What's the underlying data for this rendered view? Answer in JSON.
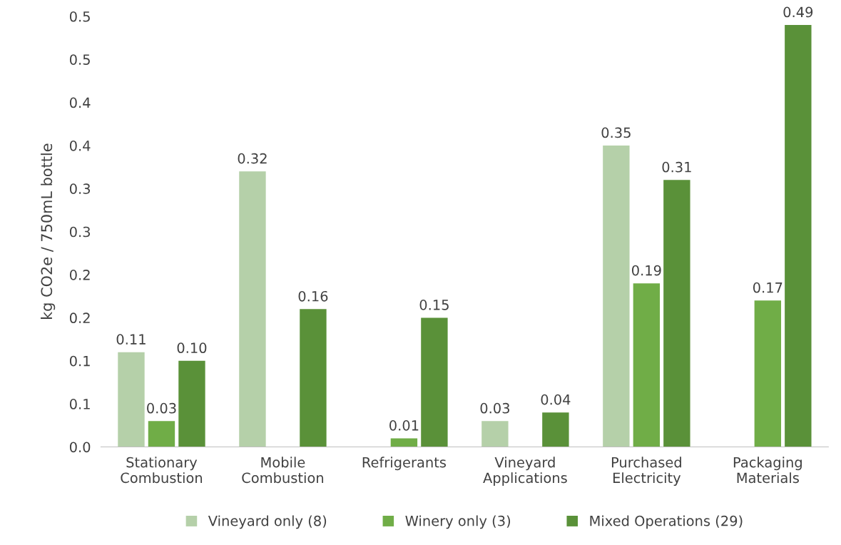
{
  "chart_data": {
    "type": "bar",
    "ylabel": "kg CO2e / 750mL bottle",
    "categories": [
      "Stationary\nCombustion",
      "Mobile\nCombustion",
      "Refrigerants",
      "Vineyard\nApplications",
      "Purchased\nElectricity",
      "Packaging\nMaterials"
    ],
    "series": [
      {
        "name": "Vineyard only (8)",
        "color": "#b5d0a9",
        "values": [
          0.11,
          0.32,
          null,
          0.03,
          0.35,
          null
        ],
        "value_labels": [
          "0.11",
          "0.32",
          null,
          "0.03",
          "0.35",
          null
        ]
      },
      {
        "name": "Winery only (3)",
        "color": "#70ad47",
        "values": [
          0.03,
          null,
          0.01,
          null,
          0.19,
          0.17
        ],
        "value_labels": [
          "0.03",
          null,
          "0.01",
          null,
          "0.19",
          "0.17"
        ]
      },
      {
        "name": "Mixed Operations (29)",
        "color": "#5a9139",
        "values": [
          0.1,
          0.16,
          0.15,
          0.04,
          0.31,
          0.49
        ],
        "value_labels": [
          "0.10",
          "0.16",
          "0.15",
          "0.04",
          "0.31",
          "0.49"
        ]
      }
    ],
    "ylim": [
      0,
      0.5
    ],
    "yticks": [
      {
        "value": 0,
        "label": "0.0"
      },
      {
        "value": 0.05,
        "label": "0.1"
      },
      {
        "value": 0.1,
        "label": "0.1"
      },
      {
        "value": 0.15,
        "label": "0.2"
      },
      {
        "value": 0.2,
        "label": "0.2"
      },
      {
        "value": 0.25,
        "label": "0.3"
      },
      {
        "value": 0.3,
        "label": "0.3"
      },
      {
        "value": 0.35,
        "label": "0.4"
      },
      {
        "value": 0.4,
        "label": "0.4"
      },
      {
        "value": 0.45,
        "label": "0.5"
      },
      {
        "value": 0.5,
        "label": "0.5"
      }
    ],
    "grid": false,
    "legend": "bottom"
  }
}
